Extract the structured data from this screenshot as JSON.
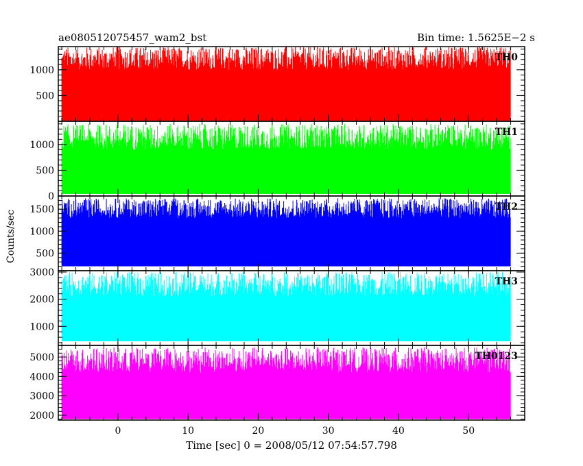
{
  "chart_data": {
    "type": "line",
    "title": "ae080512075457_wam2_bst",
    "subtitle": "Bin time: 1.5625E−2 s",
    "xlabel": "Time [sec] 0 = 2008/05/12 07:54:57.798",
    "ylabel": "Counts/sec",
    "xlim": [
      -8.5,
      58
    ],
    "x_data_range": [
      -8,
      56
    ],
    "x_ticks": [
      0,
      10,
      20,
      30,
      40,
      50
    ],
    "grid": false,
    "panels": [
      {
        "name": "TH0",
        "color": "#ff0000",
        "ylim": [
          0,
          1450
        ],
        "y_ticks": [
          500,
          1000
        ],
        "band_low": [
          0,
          120
        ],
        "band_high": [
          1000,
          1450
        ],
        "mean": 700
      },
      {
        "name": "TH1",
        "color": "#00ff00",
        "ylim": [
          0,
          1450
        ],
        "y_ticks": [
          0,
          500,
          1000
        ],
        "band_low": [
          40,
          150
        ],
        "band_high": [
          900,
          1400
        ],
        "mean": 600
      },
      {
        "name": "TH2",
        "color": "#0000ff",
        "ylim": [
          100,
          1800
        ],
        "y_ticks": [
          500,
          1000,
          1500
        ],
        "band_low": [
          200,
          420
        ],
        "band_high": [
          1300,
          1750
        ],
        "mean": 900
      },
      {
        "name": "TH3",
        "color": "#00ffff",
        "ylim": [
          300,
          3050
        ],
        "y_ticks": [
          1000,
          2000,
          3000
        ],
        "band_low": [
          450,
          700
        ],
        "band_high": [
          2100,
          3000
        ],
        "mean": 1600
      },
      {
        "name": "TH0123",
        "color": "#ff00ff",
        "ylim": [
          1750,
          5600
        ],
        "y_ticks": [
          2000,
          3000,
          4000,
          5000
        ],
        "band_low": [
          1800,
          2400
        ],
        "band_high": [
          4200,
          5500
        ],
        "mean": 3400
      }
    ]
  }
}
